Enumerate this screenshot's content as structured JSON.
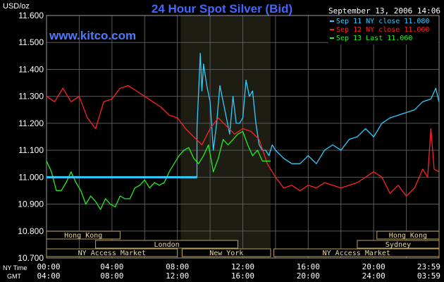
{
  "chart_data": {
    "type": "line",
    "title": "24 Hour Spot Silver (Bid)",
    "date_stamp": "September 13, 2006 14:06",
    "watermark": "www.kitco.com",
    "ylabel": "USD/oz",
    "ylim": [
      10.7,
      11.6
    ],
    "yticks": [
      "11.600",
      "11.500",
      "11.400",
      "11.300",
      "11.200",
      "11.100",
      "11.000",
      "10.900",
      "10.800",
      "10.700"
    ],
    "x_axis": {
      "ny_time_label": "NY Time",
      "gmt_label": "GMT",
      "ny_ticks": [
        "00:00",
        "04:00",
        "08:00",
        "12:00",
        "16:00",
        "20:00",
        "23:59"
      ],
      "gmt_ticks": [
        "04:00",
        "08:00",
        "12:00",
        "16:00",
        "20:00",
        "24:00",
        "03:59"
      ],
      "xlim_hours": [
        0,
        24
      ]
    },
    "legend": {
      "placement": "top-right",
      "items": [
        {
          "label": "Sep 11 NY close 11.080",
          "color": "#33ccff"
        },
        {
          "label": "Sep 12 NY close 11.000",
          "color": "#ff2222"
        },
        {
          "label": "Sep 13 Last 11.060",
          "color": "#22ee22"
        }
      ]
    },
    "sessions": [
      {
        "label": "Hong Kong",
        "row": 0,
        "start": 0,
        "end": 4.5
      },
      {
        "label": "Hong Kong",
        "row": 0,
        "start": 20.2,
        "end": 24
      },
      {
        "label": "London",
        "row": 1,
        "start": 3,
        "end": 11.7
      },
      {
        "label": "Sydney",
        "row": 1,
        "start": 19,
        "end": 24
      },
      {
        "label": "NY Access Market",
        "row": 2,
        "start": 0,
        "end": 8
      },
      {
        "label": "New York",
        "row": 2,
        "start": 8.3,
        "end": 13.7
      },
      {
        "label": "NY Access Market",
        "row": 2,
        "start": 13.9,
        "end": 24
      }
    ],
    "shaded_period_hours": [
      8.2,
      13.7
    ],
    "grid": true,
    "series": [
      {
        "color": "#33ccff",
        "x": [
          0,
          9.2,
          9.2,
          9.4,
          9.5,
          9.6,
          9.8,
          10.0,
          10.2,
          10.4,
          10.6,
          10.8,
          11.0,
          11.2,
          11.4,
          11.6,
          11.8,
          12.0,
          12.2,
          12.4,
          12.6,
          12.8,
          13.0,
          13.2,
          13.4,
          13.6,
          13.8,
          14.0,
          14.5,
          15.0,
          15.5,
          16.0,
          16.5,
          17.0,
          17.5,
          18.0,
          18.5,
          19.0,
          19.5,
          20.0,
          20.5,
          21.0,
          21.5,
          22.0,
          22.5,
          23.0,
          23.5,
          23.8,
          23.99
        ],
        "values": [
          11.0,
          11.0,
          11.18,
          11.46,
          11.32,
          11.42,
          11.34,
          11.28,
          11.1,
          11.2,
          11.34,
          11.28,
          11.22,
          11.16,
          11.3,
          11.2,
          11.2,
          11.22,
          11.36,
          11.3,
          11.32,
          11.2,
          11.12,
          11.1,
          11.1,
          11.08,
          11.12,
          11.1,
          11.07,
          11.05,
          11.05,
          11.08,
          11.05,
          11.1,
          11.12,
          11.1,
          11.14,
          11.15,
          11.18,
          11.15,
          11.2,
          11.22,
          11.23,
          11.24,
          11.25,
          11.28,
          11.29,
          11.33,
          11.28
        ]
      },
      {
        "color": "#ff2222",
        "x": [
          0,
          0.5,
          1.0,
          1.5,
          2.0,
          2.5,
          3.0,
          3.5,
          4.0,
          4.5,
          5.0,
          5.5,
          6.0,
          6.5,
          7.0,
          7.5,
          8.0,
          8.5,
          9.0,
          9.5,
          10.0,
          10.5,
          11.0,
          11.5,
          12.0,
          12.5,
          13.0,
          13.5,
          14.0,
          14.5,
          15.0,
          15.5,
          16.0,
          16.5,
          17.0,
          17.5,
          18.0,
          18.5,
          19.0,
          19.5,
          20.0,
          20.5,
          21.0,
          21.5,
          22.0,
          22.5,
          23.0,
          23.3,
          23.5,
          23.7,
          23.99
        ],
        "values": [
          11.3,
          11.28,
          11.33,
          11.28,
          11.3,
          11.22,
          11.18,
          11.28,
          11.29,
          11.33,
          11.34,
          11.32,
          11.3,
          11.28,
          11.26,
          11.23,
          11.22,
          11.18,
          11.15,
          11.12,
          11.18,
          11.22,
          11.19,
          11.16,
          11.18,
          11.17,
          11.14,
          11.05,
          11.0,
          10.96,
          10.97,
          10.95,
          10.97,
          10.96,
          10.98,
          10.97,
          10.96,
          10.97,
          10.98,
          11.0,
          11.02,
          11.0,
          10.94,
          10.97,
          10.93,
          10.96,
          11.03,
          11.0,
          11.18,
          11.03,
          11.02
        ]
      },
      {
        "color": "#22ee22",
        "x": [
          0,
          0.3,
          0.6,
          0.9,
          1.2,
          1.5,
          1.8,
          2.1,
          2.4,
          2.7,
          3.0,
          3.3,
          3.6,
          3.9,
          4.2,
          4.5,
          4.8,
          5.1,
          5.4,
          5.7,
          6.0,
          6.3,
          6.6,
          6.9,
          7.2,
          7.5,
          7.8,
          8.1,
          8.4,
          8.7,
          9.0,
          9.3,
          9.6,
          9.9,
          10.2,
          10.5,
          10.8,
          11.1,
          11.4,
          11.7,
          12.0,
          12.3,
          12.6,
          12.9,
          13.2,
          13.5,
          13.7
        ],
        "values": [
          11.06,
          11.02,
          10.95,
          10.95,
          10.98,
          11.02,
          10.98,
          10.95,
          10.9,
          10.93,
          10.91,
          10.88,
          10.92,
          10.9,
          10.89,
          10.93,
          10.92,
          10.92,
          10.96,
          10.97,
          10.99,
          10.96,
          10.98,
          10.97,
          10.98,
          11.02,
          11.05,
          11.08,
          11.1,
          11.11,
          11.07,
          11.05,
          11.08,
          11.12,
          11.02,
          11.07,
          11.14,
          11.12,
          11.14,
          11.16,
          11.17,
          11.12,
          11.08,
          11.1,
          11.06,
          11.06,
          11.06
        ]
      }
    ]
  }
}
